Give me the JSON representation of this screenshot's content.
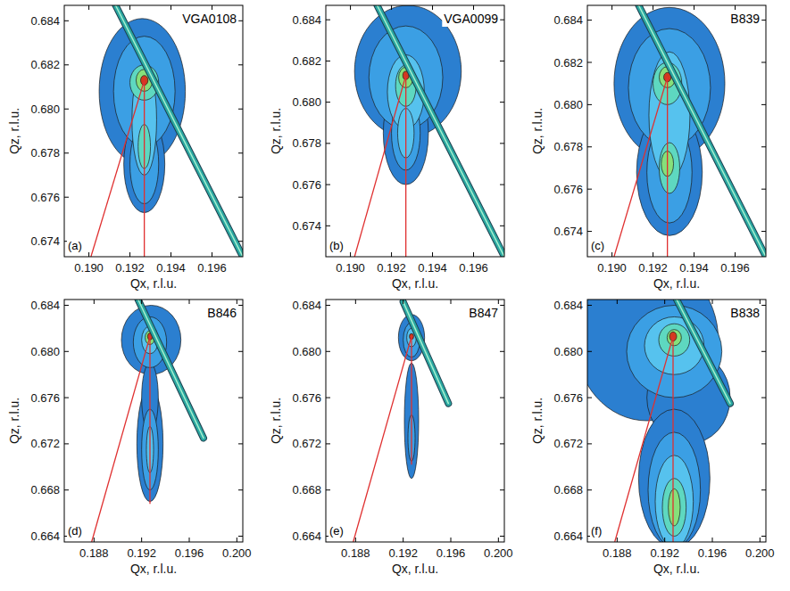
{
  "chart_data": [
    {
      "type": "contour",
      "title": "VGA0108",
      "label": "(a)",
      "x_label": "Qx, r.l.u.",
      "y_label": "Qz, r.l.u.",
      "xlim": [
        0.1888,
        0.1975
      ],
      "ylim": [
        0.6733,
        0.6847
      ],
      "xticks": [
        {
          "value": 0.19,
          "label": "0.190"
        },
        0.192,
        0.194,
        0.196
      ],
      "yticks": [
        0.674,
        0.676,
        0.678,
        {
          "value": 0.68,
          "label": "0.680"
        },
        0.682,
        0.684
      ],
      "contours": [
        {
          "x": 0.1926,
          "y": 0.6808,
          "rx": 0.0021,
          "ry": 0.0033,
          "color": "#2b7fd0"
        },
        {
          "x": 0.1927,
          "y": 0.6775,
          "rx": 0.001,
          "ry": 0.0022,
          "color": "#2b7fd0"
        },
        {
          "x": 0.1927,
          "y": 0.6808,
          "rx": 0.0015,
          "ry": 0.0025,
          "color": "#3b9fe4"
        },
        {
          "x": 0.1927,
          "y": 0.6775,
          "rx": 0.0007,
          "ry": 0.0018,
          "color": "#3b9fe4"
        },
        {
          "x": 0.1927,
          "y": 0.6795,
          "rx": 0.0006,
          "ry": 0.0025,
          "color": "#56c2ee"
        },
        {
          "x": 0.1927,
          "y": 0.6783,
          "rx": 0.0003,
          "ry": 0.001,
          "color": "#5ed8c0"
        },
        {
          "x": 0.1927,
          "y": 0.6812,
          "rx": 0.0007,
          "ry": 0.0008,
          "color": "#5ed8c0"
        },
        {
          "x": 0.1927,
          "y": 0.6813,
          "rx": 0.0004,
          "ry": 0.0005,
          "color": "#86e07a"
        },
        {
          "x": 0.1927,
          "y": 0.6813,
          "rx": 0.00018,
          "ry": 0.00022,
          "color": "#d23a1e"
        }
      ],
      "streak": {
        "x": [
          0.1913,
          0.1975
        ],
        "y": [
          0.6847,
          0.6733
        ],
        "color": "#2aa6a0"
      },
      "lines": [
        {
          "x": [
            0.1927,
            0.1927
          ],
          "y": [
            0.6733,
            0.6813
          ],
          "color": "#e03030"
        },
        {
          "x": [
            0.1901,
            0.1927
          ],
          "y": [
            0.6733,
            0.6813
          ],
          "color": "#e03030"
        }
      ]
    },
    {
      "type": "contour",
      "title": "VGA0099",
      "label": "(b)",
      "x_label": "Qx, r.l.u.",
      "y_label": "Qz, r.l.u.",
      "xlim": [
        0.1888,
        0.1975
      ],
      "ylim": [
        0.6725,
        0.6847
      ],
      "xticks": [
        {
          "value": 0.19,
          "label": "0.190"
        },
        0.192,
        0.194,
        0.196
      ],
      "yticks": [
        0.674,
        0.676,
        0.678,
        {
          "value": 0.68,
          "label": "0.680"
        },
        0.682,
        0.684
      ],
      "contours": [
        {
          "x": 0.1928,
          "y": 0.6815,
          "rx": 0.0026,
          "ry": 0.0032,
          "color": "#2b7fd0"
        },
        {
          "x": 0.1927,
          "y": 0.6785,
          "rx": 0.0011,
          "ry": 0.0025,
          "color": "#2b7fd0"
        },
        {
          "x": 0.1927,
          "y": 0.6812,
          "rx": 0.0018,
          "ry": 0.0025,
          "color": "#3b9fe4"
        },
        {
          "x": 0.1927,
          "y": 0.6785,
          "rx": 0.0007,
          "ry": 0.0018,
          "color": "#3b9fe4"
        },
        {
          "x": 0.1927,
          "y": 0.6805,
          "rx": 0.0009,
          "ry": 0.0018,
          "color": "#56c2ee"
        },
        {
          "x": 0.1927,
          "y": 0.6785,
          "rx": 0.0004,
          "ry": 0.0012,
          "color": "#56c2ee"
        },
        {
          "x": 0.1927,
          "y": 0.6808,
          "rx": 0.0005,
          "ry": 0.001,
          "color": "#5ed8c0"
        },
        {
          "x": 0.1927,
          "y": 0.6812,
          "rx": 0.00035,
          "ry": 0.0005,
          "color": "#86e07a"
        },
        {
          "x": 0.1927,
          "y": 0.6813,
          "rx": 0.00015,
          "ry": 0.0002,
          "color": "#d23a1e"
        }
      ],
      "streak": {
        "x": [
          0.1913,
          0.1975
        ],
        "y": [
          0.6847,
          0.6725
        ],
        "color": "#2aa6a0"
      },
      "lines": [
        {
          "x": [
            0.1927,
            0.1927
          ],
          "y": [
            0.6725,
            0.6813
          ],
          "color": "#e03030"
        },
        {
          "x": [
            0.1902,
            0.1927
          ],
          "y": [
            0.6725,
            0.6813
          ],
          "color": "#e03030"
        }
      ]
    },
    {
      "type": "contour",
      "title": "B839",
      "label": "(c)",
      "x_label": "Qx, r.l.u.",
      "y_label": "Qz, r.l.u.",
      "xlim": [
        0.1888,
        0.1975
      ],
      "ylim": [
        0.6728,
        0.6847
      ],
      "xticks": [
        {
          "value": 0.19,
          "label": "0.190"
        },
        0.192,
        0.194,
        0.196
      ],
      "yticks": [
        0.674,
        0.676,
        0.678,
        {
          "value": 0.68,
          "label": "0.680"
        },
        0.682,
        0.684
      ],
      "contours": [
        {
          "x": 0.1928,
          "y": 0.681,
          "rx": 0.0027,
          "ry": 0.0036,
          "color": "#2b7fd0"
        },
        {
          "x": 0.1928,
          "y": 0.6768,
          "rx": 0.0016,
          "ry": 0.003,
          "color": "#2b7fd0"
        },
        {
          "x": 0.1928,
          "y": 0.6808,
          "rx": 0.002,
          "ry": 0.0028,
          "color": "#3b9fe4"
        },
        {
          "x": 0.1928,
          "y": 0.6768,
          "rx": 0.0011,
          "ry": 0.0024,
          "color": "#3b9fe4"
        },
        {
          "x": 0.1928,
          "y": 0.6795,
          "rx": 0.001,
          "ry": 0.003,
          "color": "#56c2ee"
        },
        {
          "x": 0.1928,
          "y": 0.677,
          "rx": 0.0005,
          "ry": 0.0012,
          "color": "#5ed8c0"
        },
        {
          "x": 0.1927,
          "y": 0.681,
          "rx": 0.0007,
          "ry": 0.001,
          "color": "#5ed8c0"
        },
        {
          "x": 0.1927,
          "y": 0.6772,
          "rx": 0.0003,
          "ry": 0.0006,
          "color": "#86e07a"
        },
        {
          "x": 0.1927,
          "y": 0.6813,
          "rx": 0.0004,
          "ry": 0.0005,
          "color": "#86e07a"
        },
        {
          "x": 0.1927,
          "y": 0.6813,
          "rx": 0.00018,
          "ry": 0.00022,
          "color": "#d23a1e"
        }
      ],
      "streak": {
        "x": [
          0.1913,
          0.1975
        ],
        "y": [
          0.6847,
          0.6728
        ],
        "color": "#2aa6a0"
      },
      "lines": [
        {
          "x": [
            0.1927,
            0.1927
          ],
          "y": [
            0.6728,
            0.6813
          ],
          "color": "#e03030"
        },
        {
          "x": [
            0.1901,
            0.1927
          ],
          "y": [
            0.6728,
            0.6813
          ],
          "color": "#e03030"
        }
      ]
    },
    {
      "type": "contour",
      "title": "B846",
      "label": "(d)",
      "x_label": "Qx, r.l.u.",
      "y_label": "Qz, r.l.u.",
      "xlim": [
        0.1855,
        0.2005
      ],
      "ylim": [
        0.6635,
        0.6845
      ],
      "xticks": [
        0.188,
        0.192,
        0.196,
        {
          "value": 0.2,
          "label": "0.200"
        }
      ],
      "yticks": [
        0.664,
        0.668,
        0.672,
        0.676,
        {
          "value": 0.68,
          "label": "0.680"
        },
        0.684
      ],
      "contours": [
        {
          "x": 0.1928,
          "y": 0.681,
          "rx": 0.0025,
          "ry": 0.003,
          "color": "#2b7fd0"
        },
        {
          "x": 0.1927,
          "y": 0.672,
          "rx": 0.0011,
          "ry": 0.005,
          "color": "#2b7fd0"
        },
        {
          "x": 0.1927,
          "y": 0.676,
          "rx": 0.0007,
          "ry": 0.003,
          "color": "#2b7fd0"
        },
        {
          "x": 0.1927,
          "y": 0.6808,
          "rx": 0.0014,
          "ry": 0.0022,
          "color": "#3b9fe4"
        },
        {
          "x": 0.1927,
          "y": 0.6715,
          "rx": 0.0007,
          "ry": 0.0035,
          "color": "#3b9fe4"
        },
        {
          "x": 0.1927,
          "y": 0.6715,
          "rx": 0.0003,
          "ry": 0.002,
          "color": "#56c2ee"
        },
        {
          "x": 0.1927,
          "y": 0.681,
          "rx": 0.0007,
          "ry": 0.0012,
          "color": "#56c2ee"
        },
        {
          "x": 0.1927,
          "y": 0.6812,
          "rx": 0.0004,
          "ry": 0.0006,
          "color": "#86e07a"
        },
        {
          "x": 0.1927,
          "y": 0.6813,
          "rx": 0.0002,
          "ry": 0.0003,
          "color": "#d23a1e"
        }
      ],
      "streak": {
        "x": [
          0.1917,
          0.1972
        ],
        "y": [
          0.6845,
          0.6725
        ],
        "color": "#2aa6a0"
      },
      "lines": [
        {
          "x": [
            0.1927,
            0.1927
          ],
          "y": [
            0.6668,
            0.6813
          ],
          "color": "#e03030"
        },
        {
          "x": [
            0.1878,
            0.1927
          ],
          "y": [
            0.6635,
            0.6813
          ],
          "color": "#e03030"
        }
      ]
    },
    {
      "type": "contour",
      "title": "B847",
      "label": "(e)",
      "x_label": "Qx, r.l.u.",
      "y_label": "Qz, r.l.u.",
      "xlim": [
        0.1855,
        0.2005
      ],
      "ylim": [
        0.6635,
        0.6845
      ],
      "xticks": [
        0.188,
        0.192,
        0.196,
        {
          "value": 0.2,
          "label": "0.200"
        }
      ],
      "yticks": [
        0.664,
        0.668,
        0.672,
        0.676,
        {
          "value": 0.68,
          "label": "0.680"
        },
        0.684
      ],
      "contours": [
        {
          "x": 0.1927,
          "y": 0.6812,
          "rx": 0.0011,
          "ry": 0.002,
          "color": "#2b7fd0"
        },
        {
          "x": 0.1927,
          "y": 0.674,
          "rx": 0.0006,
          "ry": 0.005,
          "color": "#2b7fd0"
        },
        {
          "x": 0.1927,
          "y": 0.681,
          "rx": 0.0007,
          "ry": 0.0015,
          "color": "#3b9fe4"
        },
        {
          "x": 0.1927,
          "y": 0.6725,
          "rx": 0.0003,
          "ry": 0.002,
          "color": "#3b9fe4"
        },
        {
          "x": 0.1927,
          "y": 0.6812,
          "rx": 0.0004,
          "ry": 0.0008,
          "color": "#56c2ee"
        },
        {
          "x": 0.1927,
          "y": 0.6813,
          "rx": 0.00018,
          "ry": 0.00025,
          "color": "#d23a1e"
        }
      ],
      "streak": {
        "x": [
          0.192,
          0.1958
        ],
        "y": [
          0.6843,
          0.6755
        ],
        "color": "#2aa6a0"
      },
      "lines": [
        {
          "x": [
            0.1927,
            0.1927
          ],
          "y": [
            0.6702,
            0.6813
          ],
          "color": "#e03030"
        },
        {
          "x": [
            0.1878,
            0.1927
          ],
          "y": [
            0.6635,
            0.6813
          ],
          "color": "#e03030"
        }
      ]
    },
    {
      "type": "contour",
      "title": "B838",
      "label": "(f)",
      "x_label": "Qx, r.l.u.",
      "y_label": "Qz, r.l.u.",
      "xlim": [
        0.1855,
        0.2005
      ],
      "ylim": [
        0.6635,
        0.6845
      ],
      "xticks": [
        0.188,
        0.192,
        0.196,
        {
          "value": 0.2,
          "label": "0.200"
        }
      ],
      "yticks": [
        0.664,
        0.668,
        0.672,
        0.676,
        {
          "value": 0.68,
          "label": "0.680"
        },
        0.684
      ],
      "contours": [
        {
          "x": 0.1905,
          "y": 0.681,
          "rx": 0.006,
          "ry": 0.007,
          "color": "#2b7fd0"
        },
        {
          "x": 0.194,
          "y": 0.676,
          "rx": 0.0035,
          "ry": 0.004,
          "color": "#2b7fd0"
        },
        {
          "x": 0.1928,
          "y": 0.669,
          "rx": 0.003,
          "ry": 0.006,
          "color": "#2b7fd0"
        },
        {
          "x": 0.1928,
          "y": 0.68,
          "rx": 0.004,
          "ry": 0.004,
          "color": "#3b9fe4"
        },
        {
          "x": 0.1928,
          "y": 0.668,
          "rx": 0.0022,
          "ry": 0.005,
          "color": "#3b9fe4"
        },
        {
          "x": 0.1928,
          "y": 0.6805,
          "rx": 0.0025,
          "ry": 0.0025,
          "color": "#56c2ee"
        },
        {
          "x": 0.1928,
          "y": 0.667,
          "rx": 0.0016,
          "ry": 0.004,
          "color": "#56c2ee"
        },
        {
          "x": 0.1928,
          "y": 0.681,
          "rx": 0.0013,
          "ry": 0.0014,
          "color": "#5ed8c0"
        },
        {
          "x": 0.1928,
          "y": 0.6665,
          "rx": 0.001,
          "ry": 0.0025,
          "color": "#5ed8c0"
        },
        {
          "x": 0.1928,
          "y": 0.6665,
          "rx": 0.0005,
          "ry": 0.0016,
          "color": "#86e07a"
        },
        {
          "x": 0.1928,
          "y": 0.6812,
          "rx": 0.0006,
          "ry": 0.0007,
          "color": "#86e07a"
        },
        {
          "x": 0.1927,
          "y": 0.6813,
          "rx": 0.0003,
          "ry": 0.0004,
          "color": "#d23a1e"
        }
      ],
      "streak": {
        "x": [
          0.193,
          0.1975
        ],
        "y": [
          0.6845,
          0.6755
        ],
        "color": "#2aa6a0"
      },
      "lines": [
        {
          "x": [
            0.1927,
            0.1927
          ],
          "y": [
            0.6635,
            0.6813
          ],
          "color": "#e03030"
        },
        {
          "x": [
            0.1878,
            0.1927
          ],
          "y": [
            0.6635,
            0.6813
          ],
          "color": "#e03030"
        }
      ]
    }
  ]
}
